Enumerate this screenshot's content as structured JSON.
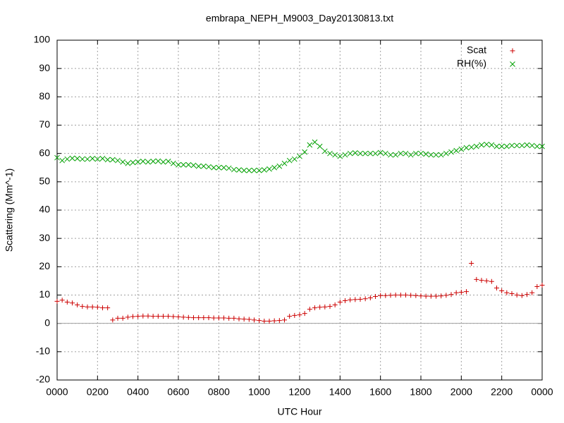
{
  "chart_data": {
    "type": "scatter",
    "title": "embrapa_NEPH_M9003_Day20130813.txt",
    "xlabel": "UTC Hour",
    "ylabel": "Scattering (Mm^-1)",
    "x": [
      0,
      0.25,
      0.5,
      0.75,
      1,
      1.25,
      1.5,
      1.75,
      2,
      2.25,
      2.5,
      2.75,
      3,
      3.25,
      3.5,
      3.75,
      4,
      4.25,
      4.5,
      4.75,
      5,
      5.25,
      5.5,
      5.75,
      6,
      6.25,
      6.5,
      6.75,
      7,
      7.25,
      7.5,
      7.75,
      8,
      8.25,
      8.5,
      8.75,
      9,
      9.25,
      9.5,
      9.75,
      10,
      10.25,
      10.5,
      10.75,
      11,
      11.25,
      11.5,
      11.75,
      12,
      12.25,
      12.5,
      12.75,
      13,
      13.25,
      13.5,
      13.75,
      14,
      14.25,
      14.5,
      14.75,
      15,
      15.25,
      15.5,
      15.75,
      16,
      16.25,
      16.5,
      16.75,
      17,
      17.25,
      17.5,
      17.75,
      18,
      18.25,
      18.5,
      18.75,
      19,
      19.25,
      19.5,
      19.75,
      20,
      20.25,
      20.5,
      20.75,
      21,
      21.25,
      21.5,
      21.75,
      22,
      22.25,
      22.5,
      22.75,
      23,
      23.25,
      23.5,
      23.75,
      24
    ],
    "series": [
      {
        "name": "Scat",
        "color": "#cc0000",
        "marker": "plus",
        "values": [
          7.8,
          8.2,
          7.5,
          7.2,
          6.5,
          6.0,
          5.8,
          5.8,
          5.7,
          5.5,
          5.5,
          1.2,
          1.8,
          1.8,
          2.2,
          2.4,
          2.5,
          2.6,
          2.6,
          2.5,
          2.5,
          2.5,
          2.5,
          2.4,
          2.3,
          2.2,
          2.1,
          2.0,
          2.0,
          2.0,
          2.0,
          1.9,
          1.9,
          1.9,
          1.8,
          1.8,
          1.6,
          1.5,
          1.4,
          1.2,
          1.0,
          0.8,
          0.8,
          0.9,
          1.0,
          1.2,
          2.5,
          2.8,
          3.0,
          3.5,
          5.0,
          5.5,
          5.7,
          5.8,
          6.0,
          6.5,
          7.5,
          8.0,
          8.3,
          8.4,
          8.5,
          8.7,
          9.0,
          9.5,
          9.8,
          9.8,
          9.9,
          10.0,
          10.0,
          10.0,
          9.9,
          9.8,
          9.7,
          9.6,
          9.6,
          9.6,
          9.7,
          9.9,
          10.2,
          10.8,
          11.0,
          11.2,
          21.2,
          15.5,
          15.2,
          15.0,
          14.8,
          12.5,
          11.5,
          10.8,
          10.5,
          10.0,
          9.8,
          10.2,
          10.8,
          13.0,
          13.5
        ]
      },
      {
        "name": "RH(%)",
        "color": "#00a000",
        "marker": "cross",
        "values": [
          58.5,
          57.5,
          58.0,
          58.3,
          58.2,
          58.0,
          58.0,
          58.2,
          58.0,
          58.2,
          57.8,
          57.8,
          57.5,
          57.0,
          56.5,
          56.8,
          57.0,
          57.2,
          57.0,
          57.2,
          57.3,
          57.0,
          57.2,
          56.5,
          56.0,
          56.0,
          56.0,
          55.8,
          55.5,
          55.5,
          55.3,
          55.0,
          55.0,
          55.0,
          54.8,
          54.3,
          54.2,
          54.0,
          54.0,
          54.0,
          54.0,
          54.2,
          54.5,
          55.0,
          55.5,
          56.5,
          57.5,
          58.0,
          59.0,
          60.5,
          63.0,
          64.0,
          62.5,
          60.8,
          60.0,
          59.5,
          59.0,
          59.5,
          60.0,
          60.2,
          60.0,
          60.0,
          60.0,
          60.0,
          60.3,
          60.0,
          59.5,
          59.5,
          60.0,
          60.0,
          59.5,
          60.0,
          60.0,
          59.8,
          59.5,
          59.5,
          59.5,
          60.0,
          60.5,
          61.0,
          61.5,
          62.0,
          62.2,
          62.5,
          63.0,
          63.2,
          63.0,
          62.5,
          62.5,
          62.5,
          62.8,
          62.8,
          62.8,
          63.0,
          62.8,
          62.5,
          62.5
        ]
      }
    ],
    "xlim": [
      0,
      24
    ],
    "xticks": [
      {
        "value": 0,
        "label": "0000"
      },
      {
        "value": 2,
        "label": "0200"
      },
      {
        "value": 4,
        "label": "0400"
      },
      {
        "value": 6,
        "label": "0600"
      },
      {
        "value": 8,
        "label": "0800"
      },
      {
        "value": 10,
        "label": "1000"
      },
      {
        "value": 12,
        "label": "1200"
      },
      {
        "value": 14,
        "label": "1400"
      },
      {
        "value": 16,
        "label": "1600"
      },
      {
        "value": 18,
        "label": "1800"
      },
      {
        "value": 20,
        "label": "2000"
      },
      {
        "value": 22,
        "label": "2200"
      },
      {
        "value": 24,
        "label": "0000"
      }
    ],
    "ylim": [
      -20,
      100
    ],
    "yticks": [
      -20,
      -10,
      0,
      10,
      20,
      30,
      40,
      50,
      60,
      70,
      80,
      90,
      100
    ],
    "grid": true,
    "zero_line": true,
    "legend": "top-right"
  }
}
